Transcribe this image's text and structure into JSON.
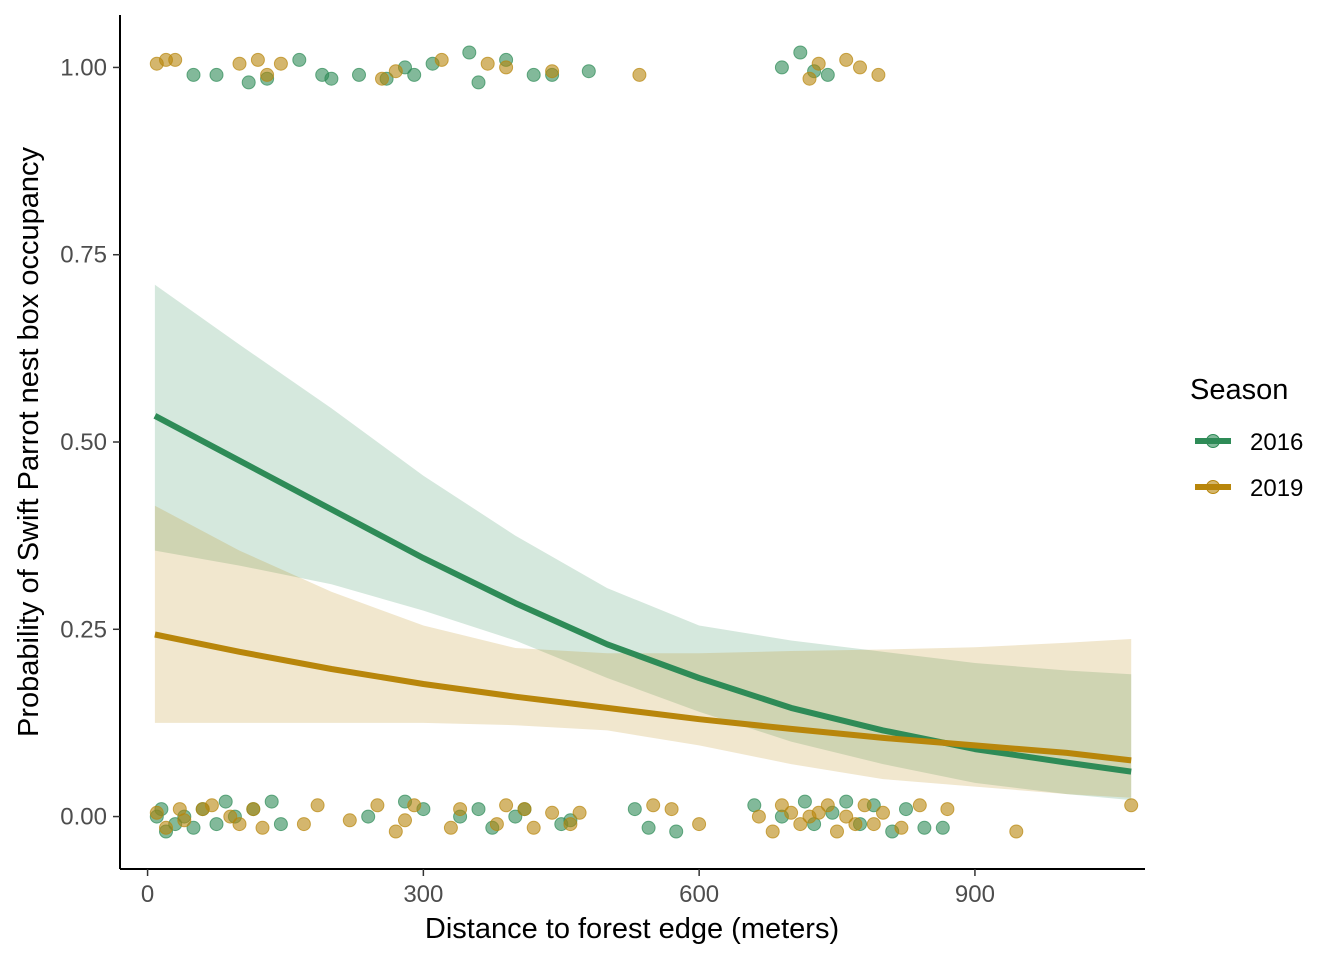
{
  "chart_data": {
    "type": "line",
    "title": "",
    "xlabel": "Distance to forest edge (meters)",
    "ylabel": "Probability of Swift Parrot nest box occupancy",
    "xlim": [
      -30,
      1085
    ],
    "ylim": [
      -0.07,
      1.07
    ],
    "x_ticks": [
      0,
      300,
      600,
      900
    ],
    "x_tick_labels": [
      "0",
      "300",
      "600",
      "900"
    ],
    "y_ticks": [
      0.0,
      0.25,
      0.5,
      0.75,
      1.0
    ],
    "y_tick_labels": [
      "0.00",
      "0.25",
      "0.50",
      "0.75",
      "1.00"
    ],
    "grid": false,
    "legend": {
      "title": "Season",
      "position": "right"
    },
    "series": [
      {
        "name": "2016",
        "color": "#2e8b57",
        "fit": {
          "x": [
            8,
            100,
            200,
            300,
            400,
            500,
            600,
            700,
            800,
            900,
            1000,
            1070
          ],
          "y": [
            0.535,
            0.475,
            0.41,
            0.345,
            0.285,
            0.23,
            0.185,
            0.145,
            0.115,
            0.09,
            0.072,
            0.06
          ],
          "lower": [
            0.355,
            0.335,
            0.31,
            0.275,
            0.235,
            0.185,
            0.14,
            0.1,
            0.07,
            0.045,
            0.03,
            0.022
          ],
          "upper": [
            0.71,
            0.63,
            0.545,
            0.455,
            0.375,
            0.305,
            0.255,
            0.235,
            0.22,
            0.205,
            0.195,
            0.19
          ]
        },
        "points": [
          [
            10,
            0.0
          ],
          [
            15,
            0.01
          ],
          [
            20,
            -0.02
          ],
          [
            30,
            -0.01
          ],
          [
            40,
            0.0
          ],
          [
            50,
            -0.015
          ],
          [
            60,
            0.01
          ],
          [
            75,
            -0.01
          ],
          [
            85,
            0.02
          ],
          [
            95,
            0.0
          ],
          [
            115,
            0.01
          ],
          [
            135,
            0.02
          ],
          [
            145,
            -0.01
          ],
          [
            240,
            0.0
          ],
          [
            280,
            0.02
          ],
          [
            300,
            0.01
          ],
          [
            340,
            0.0
          ],
          [
            360,
            0.01
          ],
          [
            375,
            -0.015
          ],
          [
            400,
            0.0
          ],
          [
            410,
            0.01
          ],
          [
            450,
            -0.01
          ],
          [
            460,
            -0.005
          ],
          [
            530,
            0.01
          ],
          [
            545,
            -0.015
          ],
          [
            575,
            -0.02
          ],
          [
            660,
            0.015
          ],
          [
            690,
            0.0
          ],
          [
            715,
            0.02
          ],
          [
            725,
            -0.01
          ],
          [
            745,
            0.005
          ],
          [
            760,
            0.02
          ],
          [
            775,
            -0.01
          ],
          [
            790,
            0.015
          ],
          [
            810,
            -0.02
          ],
          [
            825,
            0.01
          ],
          [
            845,
            -0.015
          ],
          [
            865,
            -0.015
          ],
          [
            50,
            0.99
          ],
          [
            75,
            0.99
          ],
          [
            110,
            0.98
          ],
          [
            130,
            0.985
          ],
          [
            165,
            1.01
          ],
          [
            190,
            0.99
          ],
          [
            200,
            0.985
          ],
          [
            230,
            0.99
          ],
          [
            260,
            0.985
          ],
          [
            280,
            1.0
          ],
          [
            290,
            0.99
          ],
          [
            310,
            1.005
          ],
          [
            350,
            1.02
          ],
          [
            360,
            0.98
          ],
          [
            390,
            1.01
          ],
          [
            420,
            0.99
          ],
          [
            440,
            0.99
          ],
          [
            480,
            0.995
          ],
          [
            690,
            1.0
          ],
          [
            710,
            1.02
          ],
          [
            725,
            0.995
          ],
          [
            740,
            0.99
          ]
        ]
      },
      {
        "name": "2019",
        "color": "#b8860b",
        "fit": {
          "x": [
            8,
            100,
            200,
            300,
            400,
            500,
            600,
            700,
            800,
            900,
            1000,
            1070
          ],
          "y": [
            0.243,
            0.22,
            0.197,
            0.177,
            0.16,
            0.145,
            0.13,
            0.117,
            0.105,
            0.095,
            0.085,
            0.075
          ],
          "lower": [
            0.125,
            0.125,
            0.125,
            0.125,
            0.122,
            0.115,
            0.095,
            0.07,
            0.05,
            0.04,
            0.03,
            0.025
          ],
          "upper": [
            0.415,
            0.355,
            0.3,
            0.255,
            0.225,
            0.218,
            0.218,
            0.221,
            0.223,
            0.226,
            0.232,
            0.237
          ]
        },
        "points": [
          [
            10,
            0.005
          ],
          [
            20,
            -0.015
          ],
          [
            35,
            0.01
          ],
          [
            40,
            -0.005
          ],
          [
            60,
            0.01
          ],
          [
            70,
            0.015
          ],
          [
            90,
            0.0
          ],
          [
            100,
            -0.01
          ],
          [
            115,
            0.01
          ],
          [
            125,
            -0.015
          ],
          [
            170,
            -0.01
          ],
          [
            185,
            0.015
          ],
          [
            220,
            -0.005
          ],
          [
            250,
            0.015
          ],
          [
            270,
            -0.02
          ],
          [
            280,
            -0.005
          ],
          [
            290,
            0.015
          ],
          [
            330,
            -0.015
          ],
          [
            340,
            0.01
          ],
          [
            380,
            -0.01
          ],
          [
            390,
            0.015
          ],
          [
            410,
            0.01
          ],
          [
            420,
            -0.015
          ],
          [
            440,
            0.005
          ],
          [
            460,
            -0.01
          ],
          [
            470,
            0.005
          ],
          [
            550,
            0.015
          ],
          [
            570,
            0.01
          ],
          [
            600,
            -0.01
          ],
          [
            665,
            0.0
          ],
          [
            680,
            -0.02
          ],
          [
            690,
            0.015
          ],
          [
            700,
            0.005
          ],
          [
            710,
            -0.01
          ],
          [
            720,
            0.0
          ],
          [
            730,
            0.005
          ],
          [
            740,
            0.015
          ],
          [
            750,
            -0.02
          ],
          [
            760,
            0.0
          ],
          [
            770,
            -0.01
          ],
          [
            780,
            0.015
          ],
          [
            790,
            -0.01
          ],
          [
            800,
            0.005
          ],
          [
            820,
            -0.015
          ],
          [
            840,
            0.015
          ],
          [
            870,
            0.01
          ],
          [
            945,
            -0.02
          ],
          [
            1070,
            0.015
          ],
          [
            10,
            1.005
          ],
          [
            20,
            1.01
          ],
          [
            30,
            1.01
          ],
          [
            100,
            1.005
          ],
          [
            120,
            1.01
          ],
          [
            130,
            0.99
          ],
          [
            145,
            1.005
          ],
          [
            255,
            0.985
          ],
          [
            270,
            0.995
          ],
          [
            320,
            1.01
          ],
          [
            370,
            1.005
          ],
          [
            390,
            1.0
          ],
          [
            440,
            0.995
          ],
          [
            535,
            0.99
          ],
          [
            720,
            0.985
          ],
          [
            730,
            1.005
          ],
          [
            760,
            1.01
          ],
          [
            775,
            1.0
          ],
          [
            795,
            0.99
          ]
        ]
      }
    ]
  }
}
